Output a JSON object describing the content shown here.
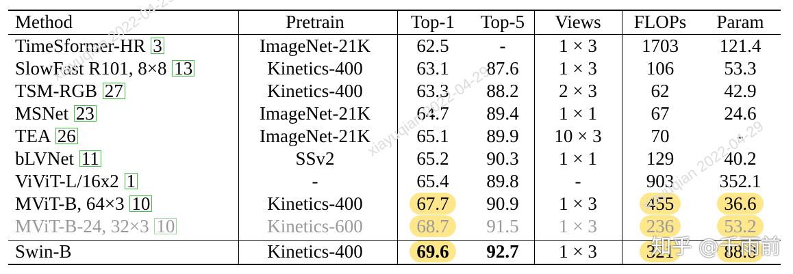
{
  "table": {
    "headers": {
      "method": "Method",
      "pretrain": "Pretrain",
      "top1": "Top-1",
      "top5": "Top-5",
      "views": "Views",
      "flops": "FLOPs",
      "param": "Param"
    },
    "rows": [
      {
        "name": "TimeSformer-HR",
        "ref": "3",
        "pretrain": "ImageNet-21K",
        "top1": "62.5",
        "top5": "-",
        "views": "1 × 3",
        "flops": "1703",
        "param": "121.4"
      },
      {
        "name": "SlowFast R101, 8×8",
        "ref": "13",
        "pretrain": "Kinetics-400",
        "top1": "63.1",
        "top5": "87.6",
        "views": "1 × 3",
        "flops": "106",
        "param": "53.3"
      },
      {
        "name": "TSM-RGB",
        "ref": "27",
        "pretrain": "Kinetics-400",
        "top1": "63.3",
        "top5": "88.2",
        "views": "2 × 3",
        "flops": "62",
        "param": "42.9"
      },
      {
        "name": "MSNet",
        "ref": "23",
        "pretrain": "ImageNet-21K",
        "top1": "64.7",
        "top5": "89.4",
        "views": "1 × 1",
        "flops": "67",
        "param": "24.6"
      },
      {
        "name": "TEA",
        "ref": "26",
        "pretrain": "ImageNet-21K",
        "top1": "65.1",
        "top5": "89.9",
        "views": "10 × 3",
        "flops": "70",
        "param": "-"
      },
      {
        "name": "bLVNet",
        "ref": "11",
        "pretrain": "SSv2",
        "top1": "65.2",
        "top5": "90.3",
        "views": "1 × 1",
        "flops": "129",
        "param": "40.2"
      },
      {
        "name": "ViViT-L/16x2",
        "ref": "1",
        "pretrain": "-",
        "top1": "65.4",
        "top5": "89.8",
        "views": "-",
        "flops": "903",
        "param": "352.1"
      },
      {
        "name": "MViT-B, 64×3",
        "ref": "10",
        "pretrain": "Kinetics-400",
        "top1": "67.7",
        "top5": "90.9",
        "views": "1 × 3",
        "flops": "455",
        "param": "36.6"
      },
      {
        "name": "MViT-B-24, 32×3",
        "ref": "10",
        "pretrain": "Kinetics-600",
        "top1": "68.7",
        "top5": "91.5",
        "views": "1 × 3",
        "flops": "236",
        "param": "53.2"
      },
      {
        "name": "Swin-B",
        "ref": "",
        "pretrain": "Kinetics-400",
        "top1": "69.6",
        "top5": "92.7",
        "views": "1 × 3",
        "flops": "321",
        "param": "88.8"
      }
    ]
  },
  "highlight_color": "#fde78a",
  "citation_box_color": "#3ec83e",
  "watermark": {
    "text": "xiayuqian 2022-04-29",
    "zhihu": "知乎 @千雨前"
  }
}
